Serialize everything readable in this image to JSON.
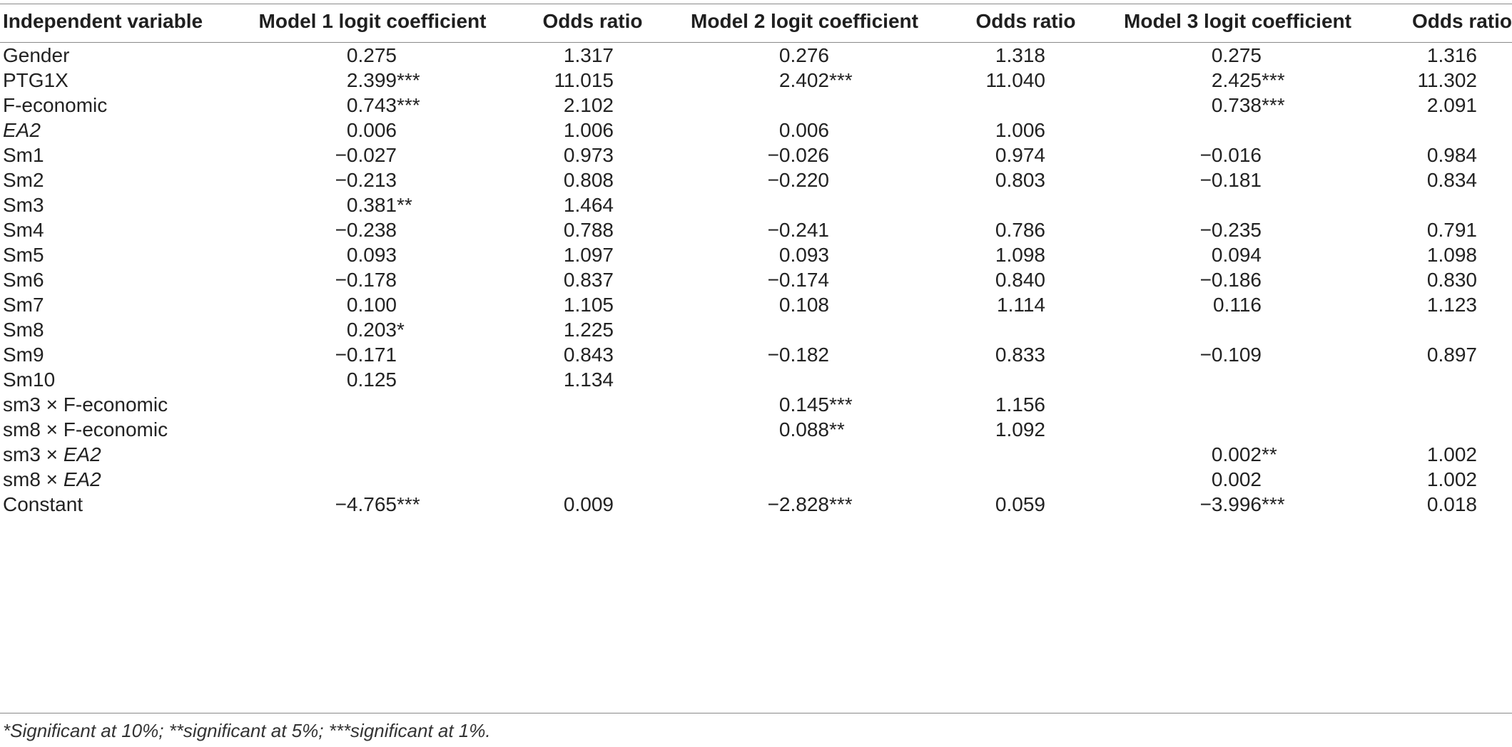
{
  "table": {
    "headers": [
      "Independent variable",
      "Model 1 logit coefficient",
      "Odds ratio",
      "Model 2 logit coefficient",
      "Odds ratio",
      "Model 3 logit coefficient",
      "Odds ratio"
    ],
    "rows": [
      {
        "var_pre": "Gender",
        "var_ital": "",
        "m1c": "0.275",
        "m1s": "",
        "m1o": "1.317",
        "m2c": "0.276",
        "m2s": "",
        "m2o": "1.318",
        "m3c": "0.275",
        "m3s": "",
        "m3o": "1.316"
      },
      {
        "var_pre": "PTG1X",
        "var_ital": "",
        "m1c": "2.399",
        "m1s": "***",
        "m1o": "11.015",
        "m2c": "2.402",
        "m2s": "***",
        "m2o": "11.040",
        "m3c": "2.425",
        "m3s": "***",
        "m3o": "11.302"
      },
      {
        "var_pre": "F-economic",
        "var_ital": "",
        "m1c": "0.743",
        "m1s": "***",
        "m1o": "2.102",
        "m2c": "",
        "m2s": "",
        "m2o": "",
        "m3c": "0.738",
        "m3s": "***",
        "m3o": "2.091"
      },
      {
        "var_pre": "",
        "var_ital": "EA2",
        "m1c": "0.006",
        "m1s": "",
        "m1o": "1.006",
        "m2c": "0.006",
        "m2s": "",
        "m2o": "1.006",
        "m3c": "",
        "m3s": "",
        "m3o": ""
      },
      {
        "var_pre": "Sm1",
        "var_ital": "",
        "m1c": "−0.027",
        "m1s": "",
        "m1o": "0.973",
        "m2c": "−0.026",
        "m2s": "",
        "m2o": "0.974",
        "m3c": "−0.016",
        "m3s": "",
        "m3o": "0.984"
      },
      {
        "var_pre": "Sm2",
        "var_ital": "",
        "m1c": "−0.213",
        "m1s": "",
        "m1o": "0.808",
        "m2c": "−0.220",
        "m2s": "",
        "m2o": "0.803",
        "m3c": "−0.181",
        "m3s": "",
        "m3o": "0.834"
      },
      {
        "var_pre": "Sm3",
        "var_ital": "",
        "m1c": "0.381",
        "m1s": "**",
        "m1o": "1.464",
        "m2c": "",
        "m2s": "",
        "m2o": "",
        "m3c": "",
        "m3s": "",
        "m3o": ""
      },
      {
        "var_pre": "Sm4",
        "var_ital": "",
        "m1c": "−0.238",
        "m1s": "",
        "m1o": "0.788",
        "m2c": "−0.241",
        "m2s": "",
        "m2o": "0.786",
        "m3c": "−0.235",
        "m3s": "",
        "m3o": "0.791"
      },
      {
        "var_pre": "Sm5",
        "var_ital": "",
        "m1c": "0.093",
        "m1s": "",
        "m1o": "1.097",
        "m2c": "0.093",
        "m2s": "",
        "m2o": "1.098",
        "m3c": "0.094",
        "m3s": "",
        "m3o": "1.098"
      },
      {
        "var_pre": "Sm6",
        "var_ital": "",
        "m1c": "−0.178",
        "m1s": "",
        "m1o": "0.837",
        "m2c": "−0.174",
        "m2s": "",
        "m2o": "0.840",
        "m3c": "−0.186",
        "m3s": "",
        "m3o": "0.830"
      },
      {
        "var_pre": "Sm7",
        "var_ital": "",
        "m1c": "0.100",
        "m1s": "",
        "m1o": "1.105",
        "m2c": "0.108",
        "m2s": "",
        "m2o": "1.114",
        "m3c": "0.116",
        "m3s": "",
        "m3o": "1.123"
      },
      {
        "var_pre": "Sm8",
        "var_ital": "",
        "m1c": "0.203",
        "m1s": "*",
        "m1o": "1.225",
        "m2c": "",
        "m2s": "",
        "m2o": "",
        "m3c": "",
        "m3s": "",
        "m3o": ""
      },
      {
        "var_pre": "Sm9",
        "var_ital": "",
        "m1c": "−0.171",
        "m1s": "",
        "m1o": "0.843",
        "m2c": "−0.182",
        "m2s": "",
        "m2o": "0.833",
        "m3c": "−0.109",
        "m3s": "",
        "m3o": "0.897"
      },
      {
        "var_pre": "Sm10",
        "var_ital": "",
        "m1c": "0.125",
        "m1s": "",
        "m1o": "1.134",
        "m2c": "",
        "m2s": "",
        "m2o": "",
        "m3c": "",
        "m3s": "",
        "m3o": ""
      },
      {
        "var_pre": "sm3 × F-economic",
        "var_ital": "",
        "m1c": "",
        "m1s": "",
        "m1o": "",
        "m2c": "0.145",
        "m2s": "***",
        "m2o": "1.156",
        "m3c": "",
        "m3s": "",
        "m3o": ""
      },
      {
        "var_pre": "sm8 × F-economic",
        "var_ital": "",
        "m1c": "",
        "m1s": "",
        "m1o": "",
        "m2c": "0.088",
        "m2s": "**",
        "m2o": "1.092",
        "m3c": "",
        "m3s": "",
        "m3o": ""
      },
      {
        "var_pre": "sm3 × ",
        "var_ital": "EA2",
        "m1c": "",
        "m1s": "",
        "m1o": "",
        "m2c": "",
        "m2s": "",
        "m2o": "",
        "m3c": "0.002",
        "m3s": "**",
        "m3o": "1.002"
      },
      {
        "var_pre": "sm8 × ",
        "var_ital": "EA2",
        "m1c": "",
        "m1s": "",
        "m1o": "",
        "m2c": "",
        "m2s": "",
        "m2o": "",
        "m3c": "0.002",
        "m3s": "",
        "m3o": "1.002"
      },
      {
        "var_pre": "Constant",
        "var_ital": "",
        "m1c": "−4.765",
        "m1s": "***",
        "m1o": "0.009",
        "m2c": "−2.828",
        "m2s": "***",
        "m2o": "0.059",
        "m3c": "−3.996",
        "m3s": "***",
        "m3o": "0.018"
      }
    ],
    "footnote": "*Significant at 10%; **significant at 5%; ***significant at 1%."
  }
}
